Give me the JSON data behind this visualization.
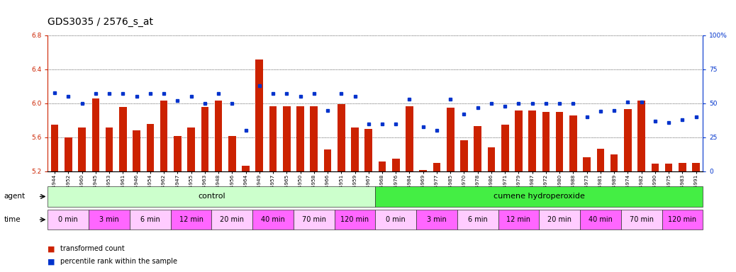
{
  "title": "GDS3035 / 2576_s_at",
  "samples": [
    "GSM184944",
    "GSM184952",
    "GSM184960",
    "GSM184945",
    "GSM184953",
    "GSM184961",
    "GSM184946",
    "GSM184954",
    "GSM184962",
    "GSM184947",
    "GSM184955",
    "GSM184963",
    "GSM184948",
    "GSM184956",
    "GSM184964",
    "GSM184949",
    "GSM184957",
    "GSM184965",
    "GSM184950",
    "GSM184958",
    "GSM184966",
    "GSM184951",
    "GSM184959",
    "GSM184967",
    "GSM184968",
    "GSM184976",
    "GSM184984",
    "GSM184969",
    "GSM184977",
    "GSM184985",
    "GSM184970",
    "GSM184978",
    "GSM184986",
    "GSM184971",
    "GSM184979",
    "GSM184987",
    "GSM184972",
    "GSM184980",
    "GSM184988",
    "GSM184973",
    "GSM184981",
    "GSM184989",
    "GSM184974",
    "GSM184982",
    "GSM184990",
    "GSM184975",
    "GSM184983",
    "GSM184991"
  ],
  "bar_values": [
    5.75,
    5.6,
    5.72,
    6.06,
    5.72,
    5.96,
    5.68,
    5.76,
    6.03,
    5.62,
    5.72,
    5.96,
    6.03,
    5.62,
    5.27,
    6.52,
    5.97,
    5.97,
    5.97,
    5.97,
    5.46,
    5.99,
    5.72,
    5.7,
    5.32,
    5.35,
    5.97,
    5.22,
    5.3,
    5.95,
    5.57,
    5.73,
    5.48,
    5.75,
    5.92,
    5.92,
    5.9,
    5.9,
    5.86,
    5.37,
    5.47,
    5.4,
    5.93,
    6.03,
    5.29,
    5.29,
    5.3,
    5.3
  ],
  "percentile_values": [
    58,
    55,
    50,
    57,
    57,
    57,
    55,
    57,
    57,
    52,
    55,
    50,
    57,
    50,
    30,
    63,
    57,
    57,
    55,
    57,
    45,
    57,
    55,
    35,
    35,
    35,
    53,
    33,
    30,
    53,
    42,
    47,
    50,
    48,
    50,
    50,
    50,
    50,
    50,
    40,
    44,
    45,
    51,
    51,
    37,
    36,
    38,
    40
  ],
  "ylim_left": [
    5.2,
    6.8
  ],
  "ylim_right": [
    0,
    100
  ],
  "yticks_left": [
    5.2,
    5.6,
    6.0,
    6.4,
    6.8
  ],
  "yticks_right": [
    0,
    25,
    50,
    75,
    100
  ],
  "ytick_labels_right": [
    "0",
    "25",
    "50",
    "75",
    "100%"
  ],
  "bar_color": "#cc2200",
  "dot_color": "#0033cc",
  "bar_bottom": 5.2,
  "agent_groups": [
    {
      "label": "control",
      "start": 0,
      "end": 24,
      "color": "#ccffcc"
    },
    {
      "label": "cumene hydroperoxide",
      "start": 24,
      "end": 48,
      "color": "#44ee44"
    }
  ],
  "time_groups": [
    {
      "label": "0 min",
      "start": 0,
      "end": 3
    },
    {
      "label": "3 min",
      "start": 3,
      "end": 6
    },
    {
      "label": "6 min",
      "start": 6,
      "end": 9
    },
    {
      "label": "12 min",
      "start": 9,
      "end": 12
    },
    {
      "label": "20 min",
      "start": 12,
      "end": 15
    },
    {
      "label": "40 min",
      "start": 15,
      "end": 18
    },
    {
      "label": "70 min",
      "start": 18,
      "end": 21
    },
    {
      "label": "120 min",
      "start": 21,
      "end": 24
    },
    {
      "label": "0 min",
      "start": 24,
      "end": 27
    },
    {
      "label": "3 min",
      "start": 27,
      "end": 30
    },
    {
      "label": "6 min",
      "start": 30,
      "end": 33
    },
    {
      "label": "12 min",
      "start": 33,
      "end": 36
    },
    {
      "label": "20 min",
      "start": 36,
      "end": 39
    },
    {
      "label": "40 min",
      "start": 39,
      "end": 42
    },
    {
      "label": "70 min",
      "start": 42,
      "end": 45
    },
    {
      "label": "120 min",
      "start": 45,
      "end": 48
    }
  ],
  "time_colors_alt": [
    "#ffccff",
    "#ff66ff"
  ],
  "background_color": "#ffffff",
  "title_fontsize": 10,
  "tick_fontsize": 6.5,
  "bar_width": 0.55
}
